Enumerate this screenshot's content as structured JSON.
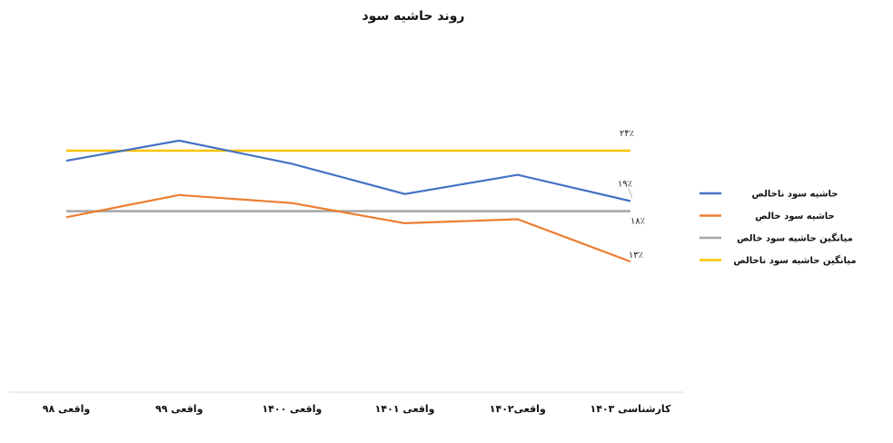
{
  "chart_data": {
    "type": "line",
    "title": "روند حاشیه سود",
    "categories": [
      "واقعی ۹۸",
      "واقعی ۹۹",
      "واقعی ۱۴۰۰",
      "واقعی ۱۴۰۱",
      "واقعی۱۴۰۲",
      "کارشناسی ۱۴۰۳"
    ],
    "series": [
      {
        "name": "حاشیه سود ناخالص",
        "color": "#4472C4",
        "values": [
          23,
          25,
          22.7,
          19.7,
          21.6,
          19
        ]
      },
      {
        "name": "حاشیه سود خالص",
        "color": "#ED7D31",
        "values": [
          17.4,
          19.6,
          18.8,
          16.8,
          17.2,
          13
        ]
      },
      {
        "name": "میانگین حاشیه سود خالص",
        "color": "#A5A5A5",
        "values": [
          18,
          18,
          18,
          18,
          18,
          18
        ]
      },
      {
        "name": "میانگین حاشیه سود ناخالص",
        "color": "#FFC000",
        "values": [
          24,
          24,
          24,
          24,
          24,
          24
        ]
      }
    ],
    "data_labels": [
      {
        "series": 0,
        "index": 5,
        "text": "۱۹٪"
      },
      {
        "series": 1,
        "index": 5,
        "text": "۱۳٪"
      },
      {
        "series": 2,
        "index": 5,
        "text": "۱۸٪"
      },
      {
        "series": 3,
        "index": 5,
        "text": "۲۴٪"
      }
    ],
    "legend_position": "right",
    "grid": false,
    "axis_y_visible": false
  }
}
